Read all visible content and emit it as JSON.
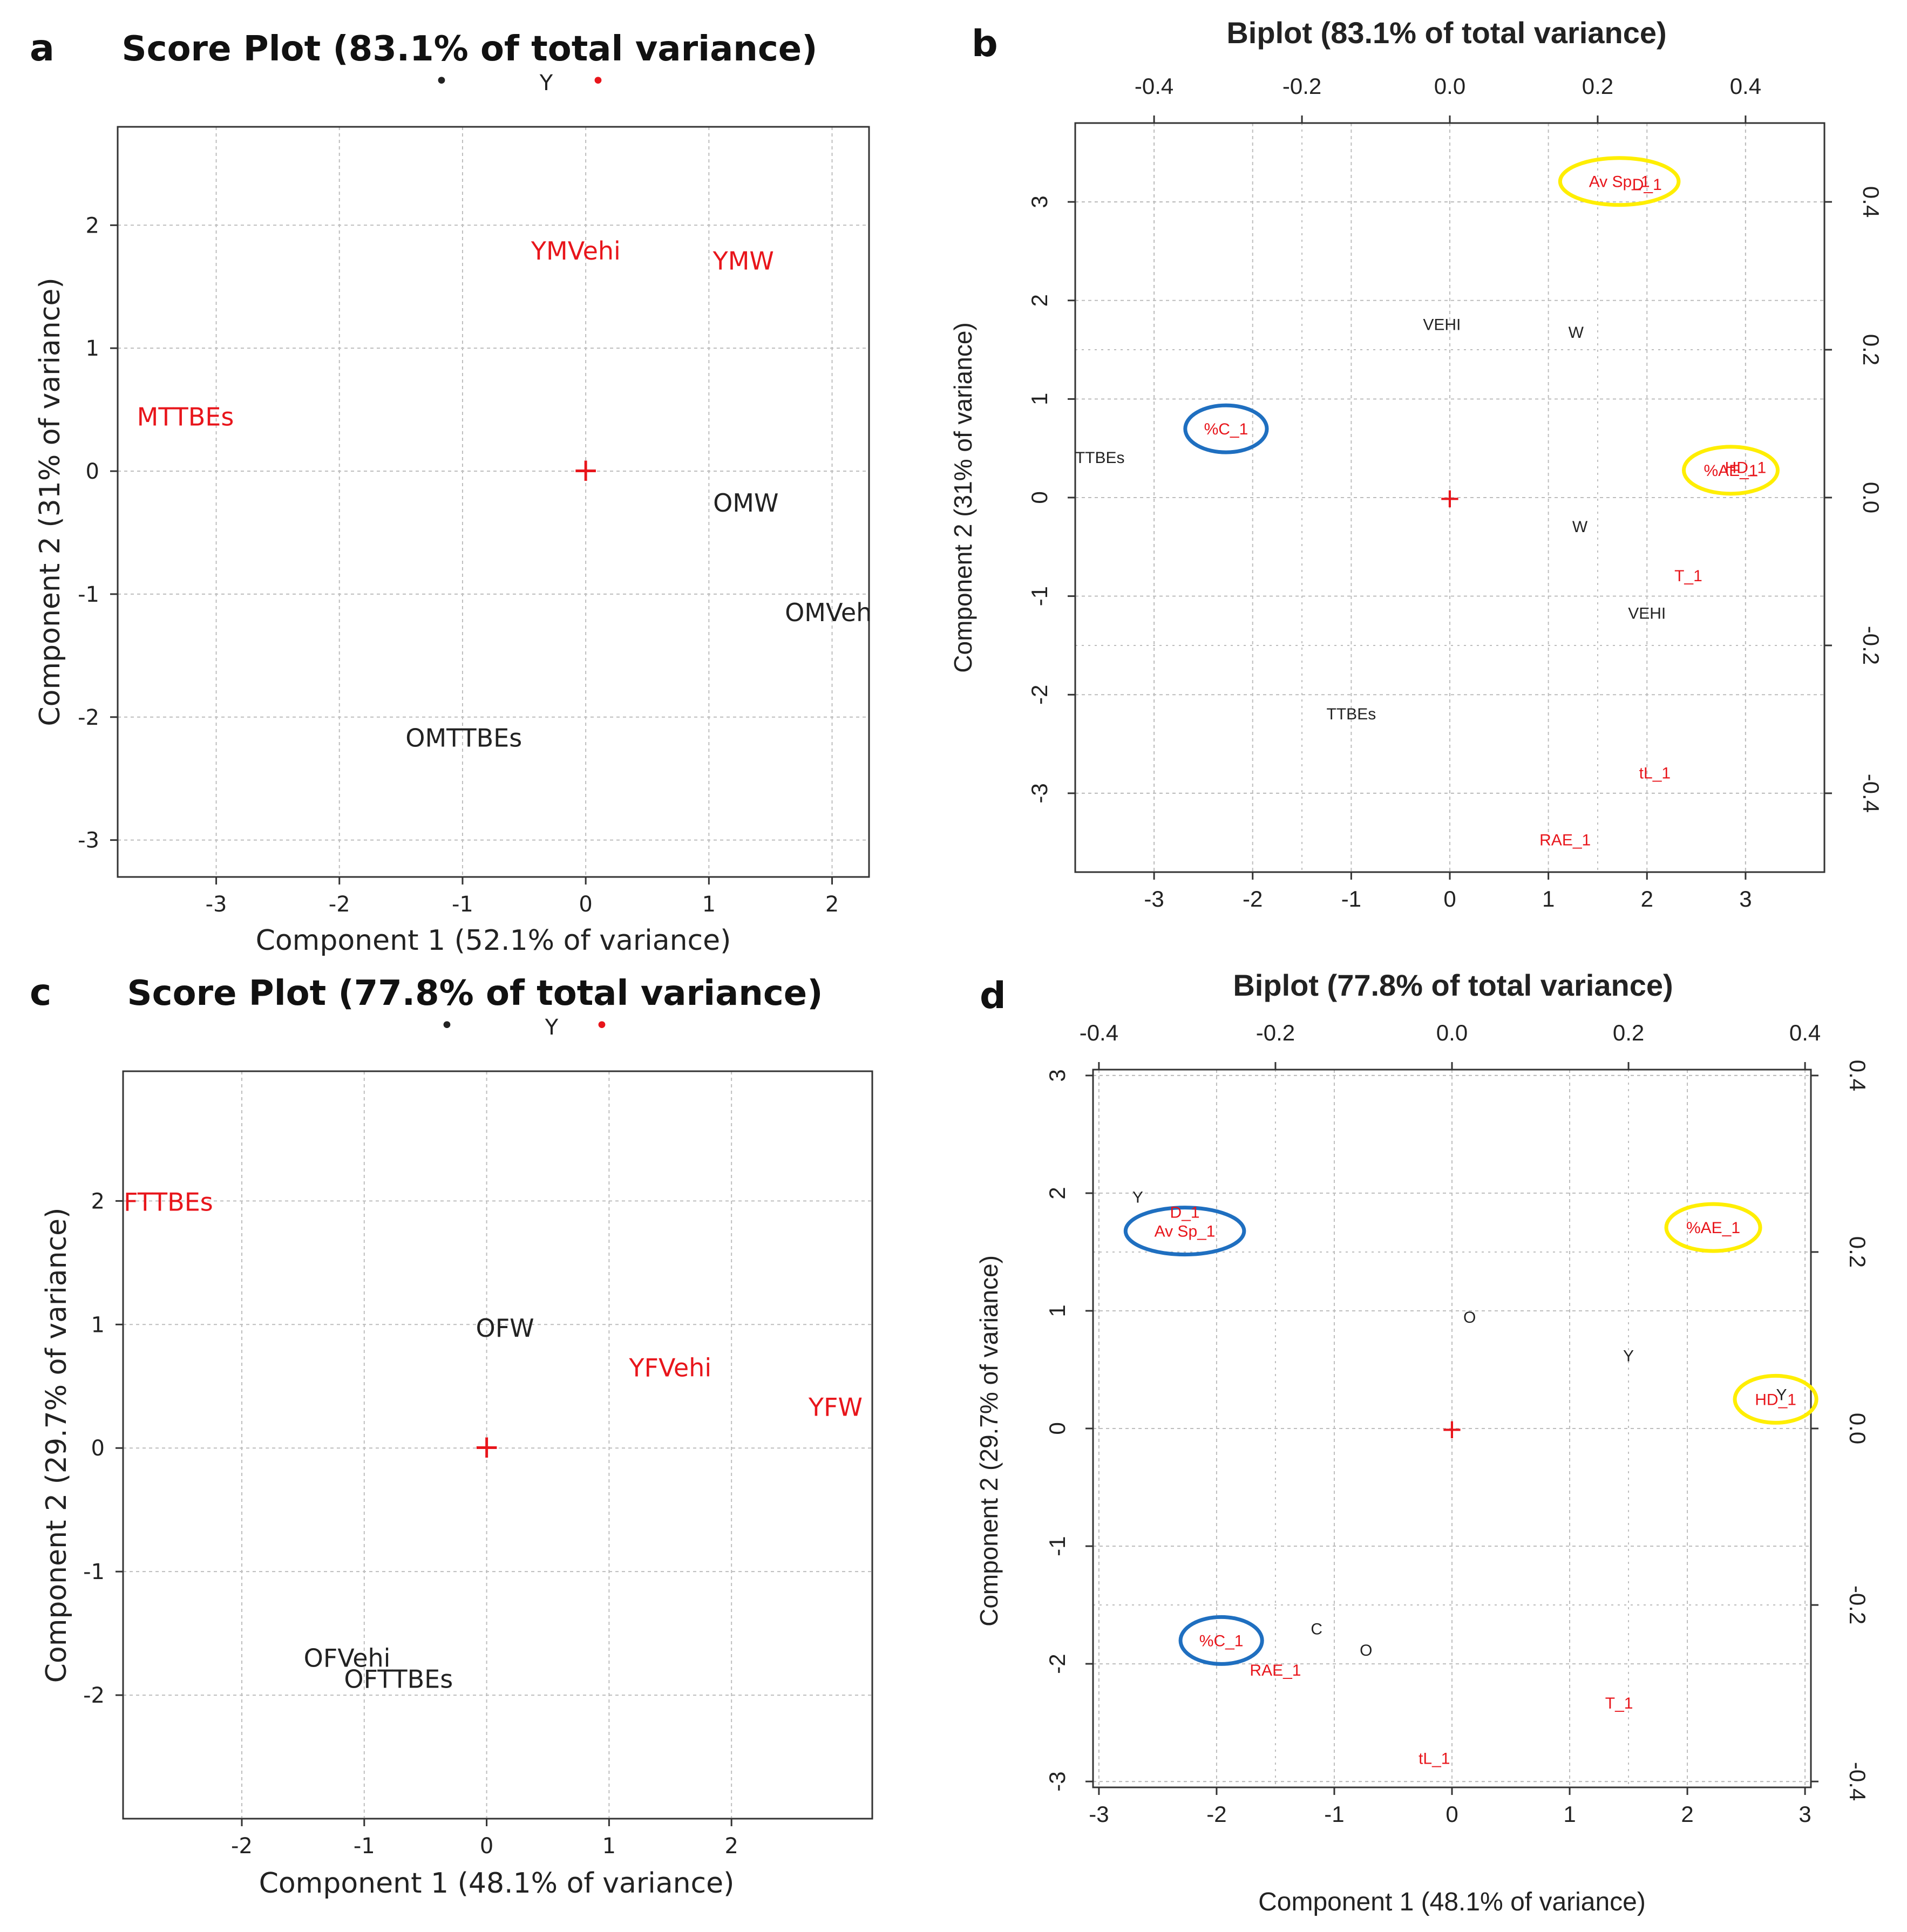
{
  "figure_labels": [
    "a",
    "b",
    "c",
    "d"
  ],
  "colors": {
    "red": "#e8151b",
    "black": "#222222",
    "blue": "#1f6fc0",
    "yellow": "#ffee00",
    "grid": "#bdbdbd"
  },
  "chart_data": [
    {
      "panel": "a",
      "type": "scatter",
      "title": "Score Plot (83.1% of total variance)",
      "legend": {
        "marker_black": "•",
        "label": "Y",
        "marker_red": "•"
      },
      "xlabel": "Component 1 (52.1% of variance)",
      "ylabel": "Component 2 (31% of variance)",
      "xlim": [
        -3.8,
        2.3
      ],
      "ylim": [
        -3.3,
        2.8
      ],
      "xticks": [
        "-3",
        "-2",
        "-1",
        "0",
        "1",
        "2"
      ],
      "yticks": [
        "-3",
        "-2",
        "-1",
        "0",
        "1",
        "2"
      ],
      "origin_marker": "+",
      "points": [
        {
          "label": "YMVehi",
          "x": -0.08,
          "y": 1.72,
          "color": "red"
        },
        {
          "label": "YMW",
          "x": 1.28,
          "y": 1.64,
          "color": "red"
        },
        {
          "label": "MTTBEs",
          "x": -3.25,
          "y": 0.37,
          "color": "red"
        },
        {
          "label": "OMW",
          "x": 1.3,
          "y": -0.33,
          "color": "black"
        },
        {
          "label": "OMVeh",
          "x": 1.97,
          "y": -1.22,
          "color": "black"
        },
        {
          "label": "OMTTBEs",
          "x": -0.99,
          "y": -2.24,
          "color": "black"
        }
      ]
    },
    {
      "panel": "b",
      "type": "scatter",
      "title": "Biplot (83.1% of total variance)",
      "xlabel": "",
      "ylabel": "Component 2 (31% of variance)",
      "xlim": [
        -3.8,
        3.8
      ],
      "ylim": [
        -3.8,
        3.8
      ],
      "xticks": [
        "-3",
        "-2",
        "-1",
        "0",
        "1",
        "2",
        "3"
      ],
      "yticks": [
        "-3",
        "-2",
        "-1",
        "0",
        "1",
        "2",
        "3"
      ],
      "top_ticks": [
        "-0.4",
        "-0.2",
        "0.0",
        "0.2",
        "0.4"
      ],
      "right_ticks": [
        "-0.4",
        "-0.2",
        "0.0",
        "0.2",
        "0.4"
      ],
      "origin_marker": "+",
      "points": [
        {
          "label": "Av Sp_1",
          "x": 1.72,
          "y": 3.15,
          "color": "red",
          "highlight": "yellow"
        },
        {
          "label": "D_1",
          "x": 2.0,
          "y": 3.12,
          "color": "red"
        },
        {
          "label": "VEHI",
          "x": -0.08,
          "y": 1.7,
          "color": "black"
        },
        {
          "label": "W",
          "x": 1.28,
          "y": 1.62,
          "color": "black"
        },
        {
          "label": "%C_1",
          "x": -2.27,
          "y": 0.64,
          "color": "red",
          "highlight": "blue"
        },
        {
          "label": "TTBEs",
          "x": -3.55,
          "y": 0.35,
          "color": "black"
        },
        {
          "label": "%AE_1",
          "x": 2.85,
          "y": 0.22,
          "color": "red",
          "highlight": "yellow"
        },
        {
          "label": "HD_1",
          "x": 3.0,
          "y": 0.25,
          "color": "red"
        },
        {
          "label": "W",
          "x": 1.32,
          "y": -0.35,
          "color": "black"
        },
        {
          "label": "T_1",
          "x": 2.42,
          "y": -0.85,
          "color": "red"
        },
        {
          "label": "VEHI",
          "x": 2.0,
          "y": -1.23,
          "color": "black"
        },
        {
          "label": "TTBEs",
          "x": -1.0,
          "y": -2.25,
          "color": "black"
        },
        {
          "label": "tL_1",
          "x": 2.08,
          "y": -2.85,
          "color": "red"
        },
        {
          "label": "RAE_1",
          "x": 1.17,
          "y": -3.53,
          "color": "red"
        }
      ]
    },
    {
      "panel": "c",
      "type": "scatter",
      "title": "Score Plot (77.8% of total variance)",
      "legend": {
        "marker_black": "•",
        "label": "Y",
        "marker_red": "•"
      },
      "xlabel": "Component 1 (48.1% of variance)",
      "ylabel": "Component 2 (29.7% of variance)",
      "xlim": [
        -2.97,
        3.15
      ],
      "ylim": [
        -3.0,
        3.05
      ],
      "xticks": [
        "-2",
        "-1",
        "0",
        "1",
        "2"
      ],
      "yticks": [
        "-2",
        "-1",
        "0",
        "1",
        "2"
      ],
      "origin_marker": "+",
      "points": [
        {
          "label": "FTTBEs",
          "x": -2.6,
          "y": 1.92,
          "color": "red"
        },
        {
          "label": "OFW",
          "x": 0.15,
          "y": 0.9,
          "color": "black"
        },
        {
          "label": "YFVehi",
          "x": 1.5,
          "y": 0.58,
          "color": "red"
        },
        {
          "label": "YFW",
          "x": 2.85,
          "y": 0.26,
          "color": "red"
        },
        {
          "label": "OFVehi",
          "x": -1.14,
          "y": -1.77,
          "color": "black"
        },
        {
          "label": "OFTTBEs",
          "x": -0.72,
          "y": -1.94,
          "color": "black"
        }
      ]
    },
    {
      "panel": "d",
      "type": "scatter",
      "title": "Biplot (77.8% of total variance)",
      "xlabel": "Component 1 (48.1% of variance)",
      "ylabel": "Component 2 (29.7% of variance)",
      "xlim": [
        -3.05,
        3.05
      ],
      "ylim": [
        -3.05,
        3.05
      ],
      "xticks": [
        "-3",
        "-2",
        "-1",
        "0",
        "1",
        "2",
        "3"
      ],
      "yticks": [
        "-3",
        "-2",
        "-1",
        "0",
        "1",
        "2",
        "3"
      ],
      "top_ticks": [
        "-0.4",
        "-0.2",
        "0.0",
        "0.2",
        "0.4"
      ],
      "right_ticks": [
        "-0.4",
        "-0.2",
        "0.0",
        "0.2",
        "0.4"
      ],
      "origin_marker": "+",
      "points": [
        {
          "label": "Y",
          "x": -2.67,
          "y": 1.92,
          "color": "black"
        },
        {
          "label": "D_1",
          "x": -2.27,
          "y": 1.79,
          "color": "red"
        },
        {
          "label": "Av Sp_1",
          "x": -2.27,
          "y": 1.63,
          "color": "red",
          "highlight": "blue"
        },
        {
          "label": "%AE_1",
          "x": 2.22,
          "y": 1.66,
          "color": "red",
          "highlight": "yellow"
        },
        {
          "label": "O",
          "x": 0.15,
          "y": 0.9,
          "color": "black"
        },
        {
          "label": "Y",
          "x": 1.5,
          "y": 0.57,
          "color": "black"
        },
        {
          "label": "HD_1",
          "x": 2.75,
          "y": 0.2,
          "color": "red",
          "highlight": "yellow"
        },
        {
          "label": "Y",
          "x": 2.8,
          "y": 0.24,
          "color": "black"
        },
        {
          "label": "%C_1",
          "x": -1.96,
          "y": -1.85,
          "color": "red",
          "highlight": "blue"
        },
        {
          "label": "C",
          "x": -1.15,
          "y": -1.75,
          "color": "black"
        },
        {
          "label": "O",
          "x": -0.73,
          "y": -1.93,
          "color": "black"
        },
        {
          "label": "RAE_1",
          "x": -1.5,
          "y": -2.1,
          "color": "red"
        },
        {
          "label": "T_1",
          "x": 1.42,
          "y": -2.38,
          "color": "red"
        },
        {
          "label": "tL_1",
          "x": -0.15,
          "y": -2.85,
          "color": "red"
        }
      ]
    }
  ]
}
